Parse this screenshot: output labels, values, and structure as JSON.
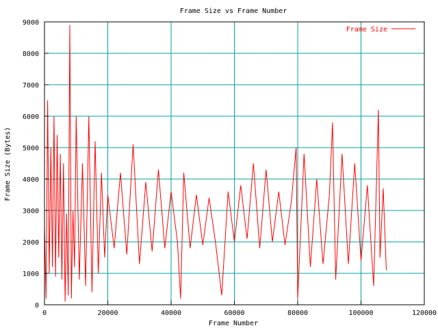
{
  "chart_data": {
    "type": "line",
    "title": "Frame Size vs Frame Number",
    "xlabel": "Frame Number",
    "ylabel": "Frame Size (Bytes)",
    "xlim": [
      0,
      120000
    ],
    "ylim": [
      0,
      9000
    ],
    "x_ticks": [
      "0",
      "20000",
      "40000",
      "60000",
      "80000",
      "100000",
      "120000"
    ],
    "y_ticks": [
      "0",
      "1000",
      "2000",
      "3000",
      "4000",
      "5000",
      "6000",
      "7000",
      "8000",
      "9000"
    ],
    "grid": true,
    "legend_position": "top-right",
    "colors": {
      "series": "#ff0000",
      "grid": "#00a0a0",
      "axis": "#000000"
    },
    "series": [
      {
        "name": "Frame Size",
        "x": [
          0,
          500,
          1000,
          1500,
          2000,
          2500,
          3000,
          3500,
          4000,
          4500,
          5000,
          5500,
          6000,
          6500,
          7000,
          7500,
          8000,
          8500,
          9000,
          9500,
          10000,
          11000,
          12000,
          13000,
          14000,
          15000,
          16000,
          17000,
          18000,
          19000,
          20000,
          22000,
          24000,
          26000,
          28000,
          30000,
          32000,
          34000,
          36000,
          38000,
          40000,
          42000,
          43000,
          44000,
          46000,
          48000,
          50000,
          52000,
          54000,
          56000,
          58000,
          60000,
          62000,
          64000,
          66000,
          68000,
          70000,
          72000,
          74000,
          76000,
          78000,
          79500,
          80000,
          82000,
          84000,
          86000,
          88000,
          90000,
          91000,
          92000,
          94000,
          96000,
          98000,
          100000,
          102000,
          104000,
          105500,
          106000,
          107000,
          108000
        ],
        "y": [
          2500,
          200,
          6500,
          1000,
          5000,
          1200,
          6000,
          900,
          5400,
          1500,
          4800,
          800,
          4500,
          100,
          2900,
          300,
          8900,
          200,
          3000,
          1200,
          6000,
          800,
          4500,
          600,
          6000,
          400,
          5200,
          1000,
          4200,
          1500,
          3500,
          1800,
          4200,
          1600,
          5100,
          1300,
          3900,
          1700,
          4300,
          1800,
          3600,
          2000,
          200,
          4200,
          1800,
          3500,
          1900,
          3400,
          2000,
          300,
          3600,
          2000,
          3800,
          2100,
          4500,
          1800,
          4300,
          2000,
          3600,
          1900,
          3300,
          5000,
          200,
          4800,
          1200,
          4000,
          1300,
          3500,
          5800,
          800,
          4800,
          1300,
          4500,
          1400,
          3800,
          600,
          6200,
          1500,
          3700,
          1100
        ]
      }
    ]
  }
}
